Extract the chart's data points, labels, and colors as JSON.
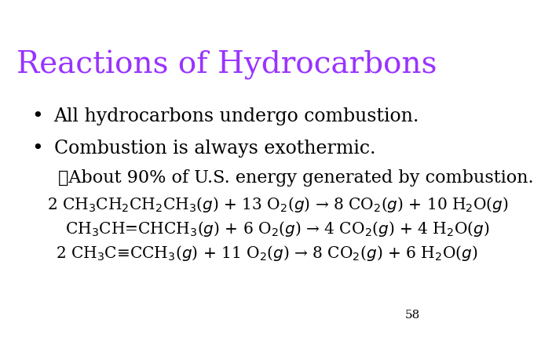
{
  "title": "Reactions of Hydrocarbons",
  "title_color": "#9933FF",
  "title_fontsize": 28,
  "background_color": "#FFFFFF",
  "bullet1": "All hydrocarbons undergo combustion.",
  "bullet2": "Combustion is always exothermic.",
  "check_line": "✓About 90% of U.S. energy generated by combustion.",
  "eq1": "2 CH$_3$CH$_2$CH$_2$CH$_3$($g$) + 13 O$_2$($g$) → 8 CO$_2$($g$) + 10 H$_2$O($g$)",
  "eq2": "CH$_3$CH=CHCH$_3$($g$) + 6 O$_2$($g$) → 4 CO$_2$($g$) + 4 H$_2$O($g$)",
  "eq3": "2 CH$_3$C≡CCH$_3$($g$) + 11 O$_2$($g$) → 8 CO$_2$($g$) + 6 H$_2$O($g$)",
  "page_num": "58",
  "text_color": "#000000",
  "body_fontsize": 17,
  "eq_fontsize": 14.5
}
